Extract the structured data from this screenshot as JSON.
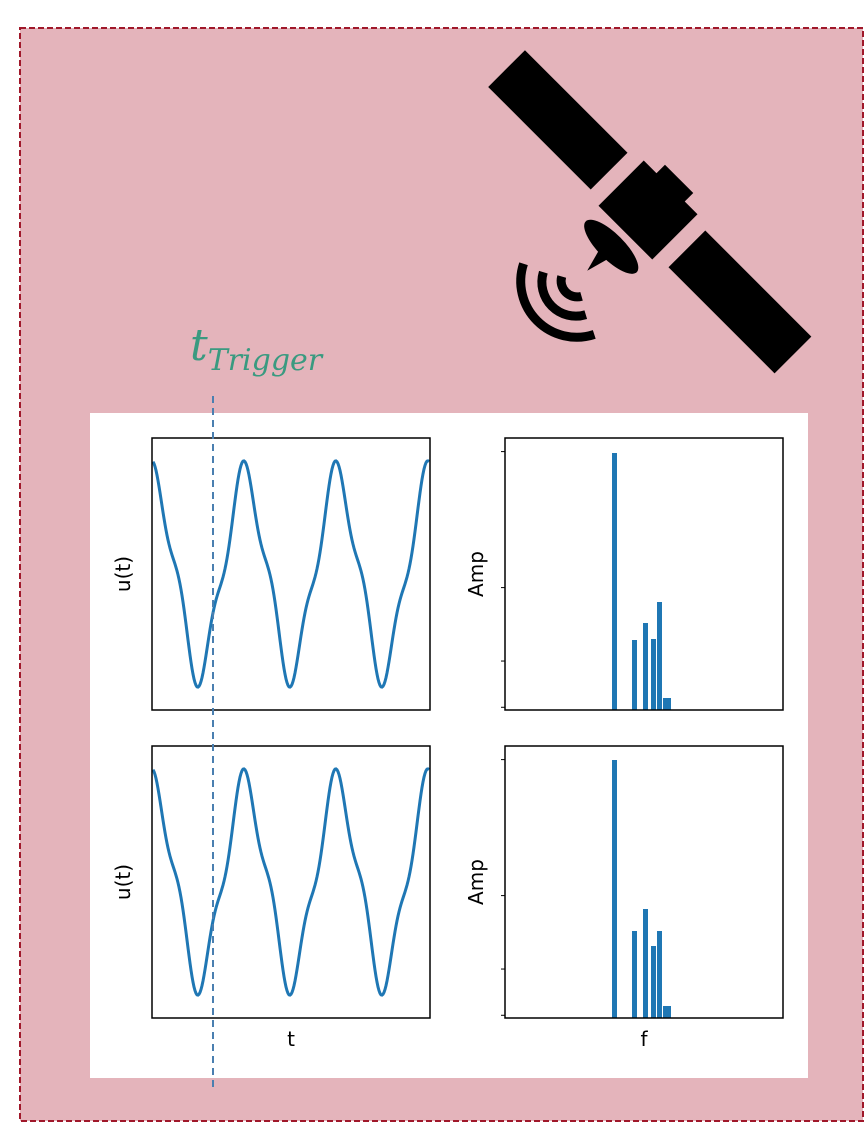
{
  "trigger_label": {
    "main": "t",
    "sub": "Trigger"
  },
  "plots": [
    {
      "ylabel": "u(t)"
    },
    {
      "ylabel": "Amp"
    },
    {
      "ylabel": "u(t)",
      "xlabel": "t"
    },
    {
      "ylabel": "Amp",
      "xlabel": "f"
    }
  ]
}
